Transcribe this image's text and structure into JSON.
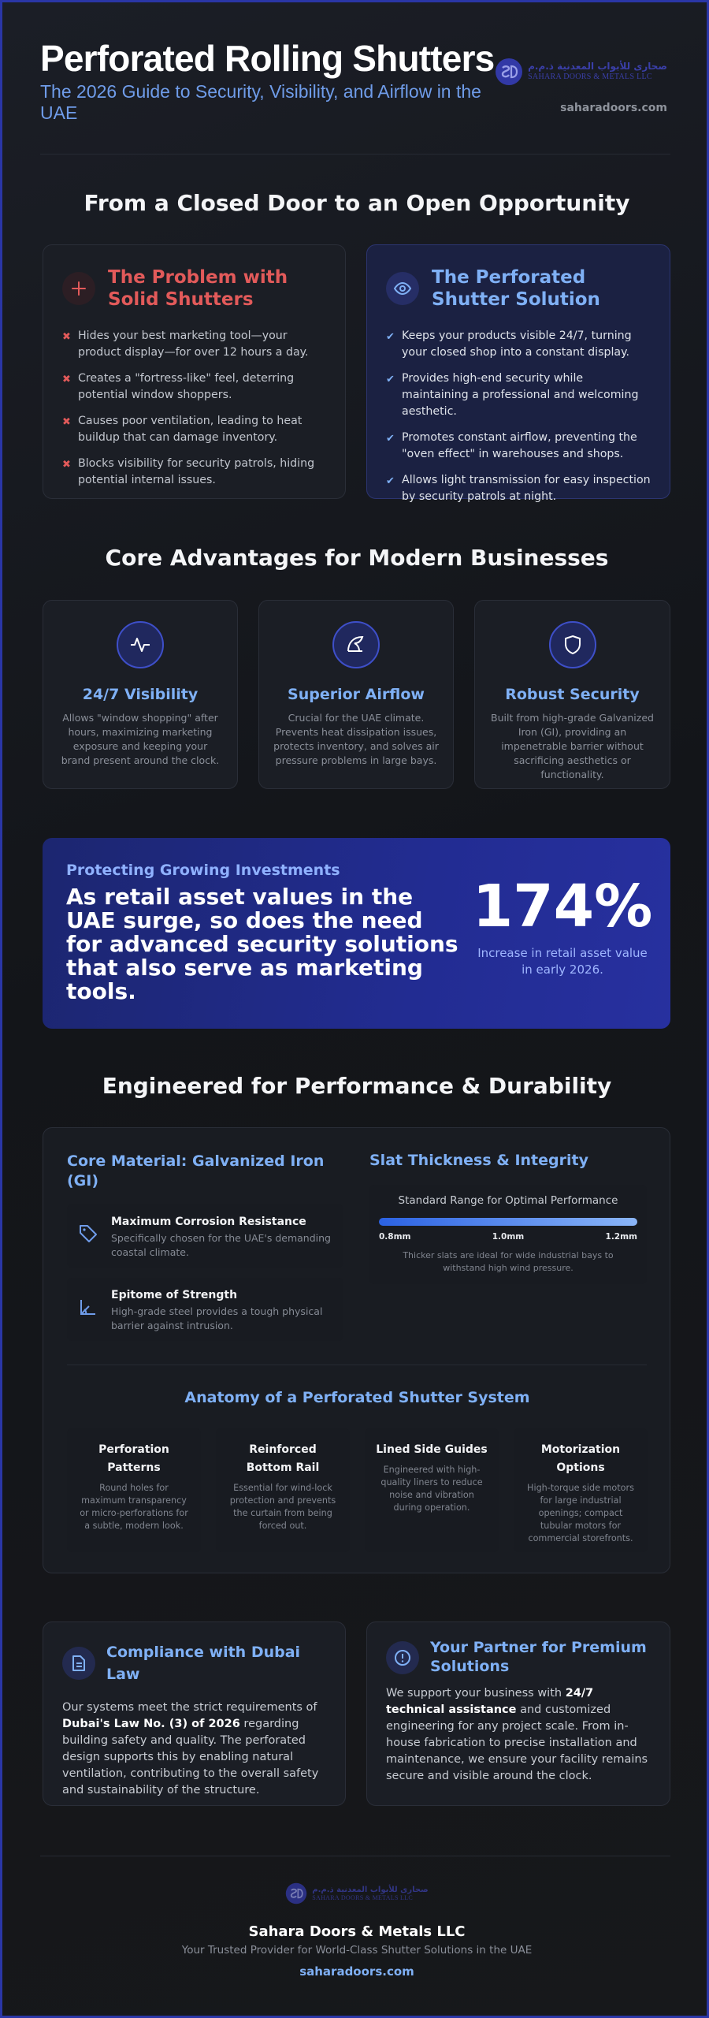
{
  "header": {
    "title": "Perforated Rolling Shutters",
    "subtitle": "The 2026 Guide to Security, Visibility, and Airflow in the UAE",
    "logo_arabic": "صحارى للأبواب المعدنية ذ.م.م",
    "logo_english": "SAHARA DOORS & METALS LLC",
    "website": "saharadoors.com"
  },
  "comparison": {
    "heading": "From a Closed Door to an Open Opportunity",
    "problem": {
      "title": "The Problem with Solid Shutters",
      "items": [
        "Hides your best marketing tool—your product display—for over 12 hours a day.",
        "Creates a \"fortress-like\" feel, deterring potential window shoppers.",
        "Causes poor ventilation, leading to heat buildup that can damage inventory.",
        "Blocks visibility for security patrols, hiding potential internal issues."
      ]
    },
    "solution": {
      "title": "The Perforated Shutter Solution",
      "items": [
        "Keeps your products visible 24/7, turning your closed shop into a constant display.",
        "Provides high-end security while maintaining a professional and welcoming aesthetic.",
        "Promotes constant airflow, preventing the \"oven effect\" in warehouses and shops.",
        "Allows light transmission for easy inspection by security patrols at night."
      ]
    }
  },
  "advantages": {
    "heading": "Core Advantages for Modern Businesses",
    "cards": [
      {
        "title": "24/7 Visibility",
        "text": "Allows \"window shopping\" after hours, maximizing marketing exposure and keeping your brand present around the clock."
      },
      {
        "title": "Superior Airflow",
        "text": "Crucial for the UAE climate. Prevents heat dissipation issues, protects inventory, and solves air pressure problems in large bays."
      },
      {
        "title": "Robust Security",
        "text": "Built from high-grade Galvanized Iron (GI), providing an impenetrable barrier without sacrificing aesthetics or functionality."
      }
    ]
  },
  "investment": {
    "kicker": "Protecting Growing Investments",
    "statement": "As retail asset values in the UAE surge, so does the need for advanced security solutions that also serve as marketing tools.",
    "stat": "174%",
    "stat_caption": "Increase in retail asset value in early 2026."
  },
  "engineering": {
    "heading": "Engineered for Performance & Durability",
    "material": {
      "title": "Core Material: Galvanized Iron (GI)",
      "features": [
        {
          "title": "Maximum Corrosion Resistance",
          "text": "Specifically chosen for the UAE's demanding coastal climate."
        },
        {
          "title": "Epitome of Strength",
          "text": "High-grade steel provides a tough physical barrier against intrusion."
        }
      ]
    },
    "thickness": {
      "title": "Slat Thickness & Integrity",
      "range_label": "Standard Range for Optimal Performance",
      "scale": [
        "0.8mm",
        "1.0mm",
        "1.2mm"
      ],
      "note": "Thicker slats are ideal for wide industrial bays to withstand high wind pressure."
    },
    "anatomy": {
      "title": "Anatomy of a Perforated Shutter System",
      "parts": [
        {
          "title": "Perforation Patterns",
          "text": "Round holes for maximum transparency or micro-perforations for a subtle, modern look."
        },
        {
          "title": "Reinforced Bottom Rail",
          "text": "Essential for wind-lock protection and prevents the curtain from being forced out."
        },
        {
          "title": "Lined Side Guides",
          "text": "Engineered with high-quality liners to reduce noise and vibration during operation."
        },
        {
          "title": "Motorization Options",
          "text": "High-torque side motors for large industrial openings; compact tubular motors for commercial storefronts."
        }
      ]
    }
  },
  "compliance": {
    "title": "Compliance with Dubai Law",
    "text_before": "Our systems meet the strict requirements of",
    "text_bold": "Dubai's Law No. (3) of 2026",
    "text_after": "regarding building safety and quality. The perforated design supports this by enabling natural ventilation, contributing to the overall safety and sustainability of the structure."
  },
  "partner": {
    "title": "Your Partner for Premium Solutions",
    "text_before": "We support your business with",
    "text_bold": "24/7 technical assistance",
    "text_after": "and customized engineering for any project scale. From in-house fabrication to precise installation and maintenance, we ensure your facility remains secure and visible around the clock."
  },
  "footer": {
    "logo_arabic": "صحارى للأبواب المعدنية ذ.م.م",
    "logo_english": "SAHARA DOORS & METALS LLC",
    "company": "Sahara Doors & Metals LLC",
    "tagline": "Your Trusted Provider for World-Class Shutter Solutions in the UAE",
    "website": "saharadoors.com"
  }
}
